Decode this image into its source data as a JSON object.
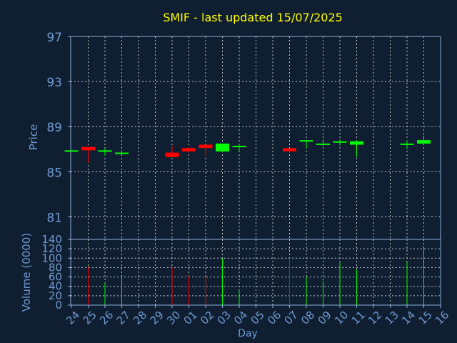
{
  "chart_data": {
    "type": "candlestick",
    "title": "SMIF - last updated 15/07/2025",
    "xlabel": "Day",
    "colors": {
      "background": "#0f1e30",
      "axis": "#8fb2df",
      "grid": "#c8c8c8",
      "up": "#00ff00",
      "down": "#ff0000",
      "title": "#ffff00",
      "label": "#6f9ad3"
    },
    "days": [
      "24",
      "25",
      "26",
      "27",
      "28",
      "29",
      "30",
      "01",
      "02",
      "03",
      "04",
      "05",
      "06",
      "07",
      "08",
      "09",
      "10",
      "11",
      "12",
      "13",
      "14",
      "15",
      "16"
    ],
    "price_panel": {
      "ylabel": "Price",
      "ylim": [
        79,
        97
      ],
      "yticks": [
        97,
        93,
        89,
        85,
        81
      ],
      "grid": true
    },
    "volume_panel": {
      "ylabel": "Volume (0000)",
      "ylim": [
        0,
        140
      ],
      "yticks": [
        140,
        120,
        100,
        80,
        60,
        40,
        20,
        0
      ],
      "grid": true
    },
    "candles": [
      {
        "day": "24",
        "open": 86.9,
        "high": 86.9,
        "low": 86.8,
        "close": 86.9,
        "volume": 0
      },
      {
        "day": "25",
        "open": 87.2,
        "high": 87.2,
        "low": 85.8,
        "close": 86.9,
        "volume": 82
      },
      {
        "day": "26",
        "open": 86.8,
        "high": 87.1,
        "low": 86.4,
        "close": 86.9,
        "volume": 48
      },
      {
        "day": "27",
        "open": 86.6,
        "high": 86.9,
        "low": 86.5,
        "close": 86.7,
        "volume": 60
      },
      {
        "day": "30",
        "open": 86.7,
        "high": 87.3,
        "low": 86.3,
        "close": 86.3,
        "volume": 80
      },
      {
        "day": "01",
        "open": 87.1,
        "high": 87.2,
        "low": 86.7,
        "close": 86.8,
        "volume": 62
      },
      {
        "day": "02",
        "open": 87.4,
        "high": 87.4,
        "low": 86.4,
        "close": 87.1,
        "volume": 60
      },
      {
        "day": "03",
        "open": 86.8,
        "high": 87.5,
        "low": 86.8,
        "close": 87.5,
        "volume": 100
      },
      {
        "day": "04",
        "open": 87.2,
        "high": 87.5,
        "low": 86.8,
        "close": 87.3,
        "volume": 32
      },
      {
        "day": "07",
        "open": 87.1,
        "high": 87.1,
        "low": 86.7,
        "close": 86.8,
        "volume": 100
      },
      {
        "day": "08",
        "open": 87.7,
        "high": 87.8,
        "low": 87.1,
        "close": 87.8,
        "volume": 60
      },
      {
        "day": "09",
        "open": 87.4,
        "high": 87.7,
        "low": 87.3,
        "close": 87.5,
        "volume": 52
      },
      {
        "day": "10",
        "open": 87.6,
        "high": 87.9,
        "low": 87.3,
        "close": 87.7,
        "volume": 92
      },
      {
        "day": "11",
        "open": 87.4,
        "high": 87.8,
        "low": 86.3,
        "close": 87.7,
        "volume": 75
      },
      {
        "day": "14",
        "open": 87.4,
        "high": 87.8,
        "low": 87.0,
        "close": 87.5,
        "volume": 92
      },
      {
        "day": "15",
        "open": 87.5,
        "high": 88.2,
        "low": 87.4,
        "close": 87.8,
        "volume": 122
      }
    ]
  }
}
